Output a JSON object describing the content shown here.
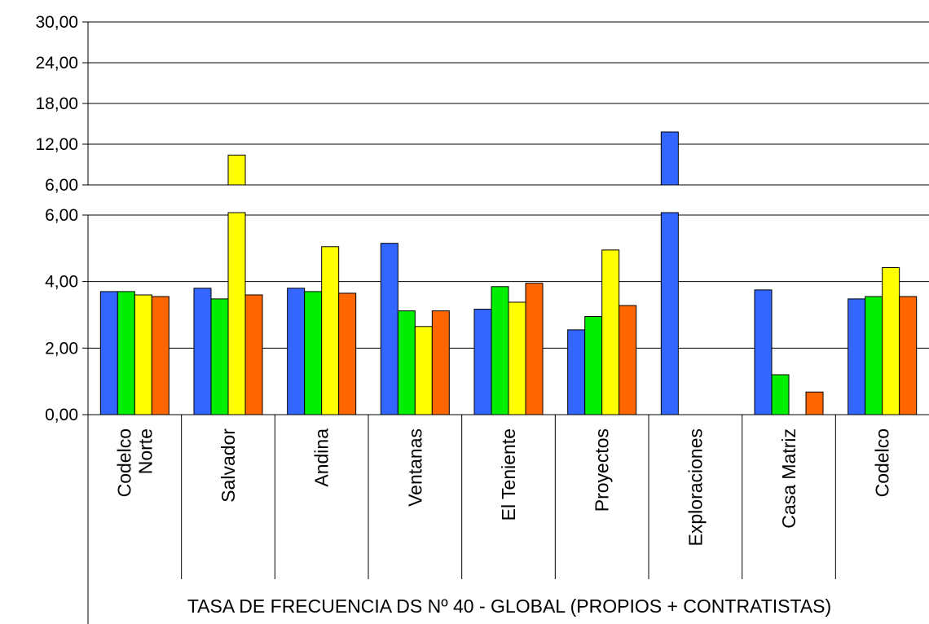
{
  "chart_data": {
    "type": "bar",
    "title": "TASA DE FRECUENCIA DS Nº 40 - GLOBAL (PROPIOS + CONTRATISTAS)",
    "xlabel": "",
    "ylabel": "",
    "grid": true,
    "broken_axis": true,
    "ylim_lower": [
      0,
      6
    ],
    "ylim_upper": [
      6,
      30
    ],
    "yticks_lower": [
      "0,00",
      "2,00",
      "4,00",
      "6,00"
    ],
    "yticks_upper": [
      "6,00",
      "12,00",
      "18,00",
      "24,00",
      "30,00"
    ],
    "categories": [
      [
        "Codelco",
        "Norte"
      ],
      [
        "Salvador"
      ],
      [
        "Andina"
      ],
      [
        "Ventanas"
      ],
      [
        "El Teniente"
      ],
      [
        "Proyectos"
      ],
      [
        "Exploraciones"
      ],
      [
        "Casa Matriz"
      ],
      [
        "Codelco"
      ]
    ],
    "series": [
      {
        "color": "#3366ff",
        "values": [
          3.7,
          3.8,
          3.8,
          5.15,
          3.17,
          2.55,
          13.8,
          3.75,
          3.48
        ]
      },
      {
        "color": "#00ee00",
        "values": [
          3.7,
          3.48,
          3.7,
          3.12,
          3.85,
          2.95,
          0,
          1.2,
          3.55
        ]
      },
      {
        "color": "#ffff00",
        "values": [
          3.6,
          10.4,
          5.05,
          2.65,
          3.38,
          4.95,
          0,
          0,
          4.42
        ]
      },
      {
        "color": "#ff6600",
        "values": [
          3.55,
          3.6,
          3.65,
          3.12,
          3.95,
          3.28,
          0,
          0.68,
          3.55
        ]
      }
    ]
  }
}
